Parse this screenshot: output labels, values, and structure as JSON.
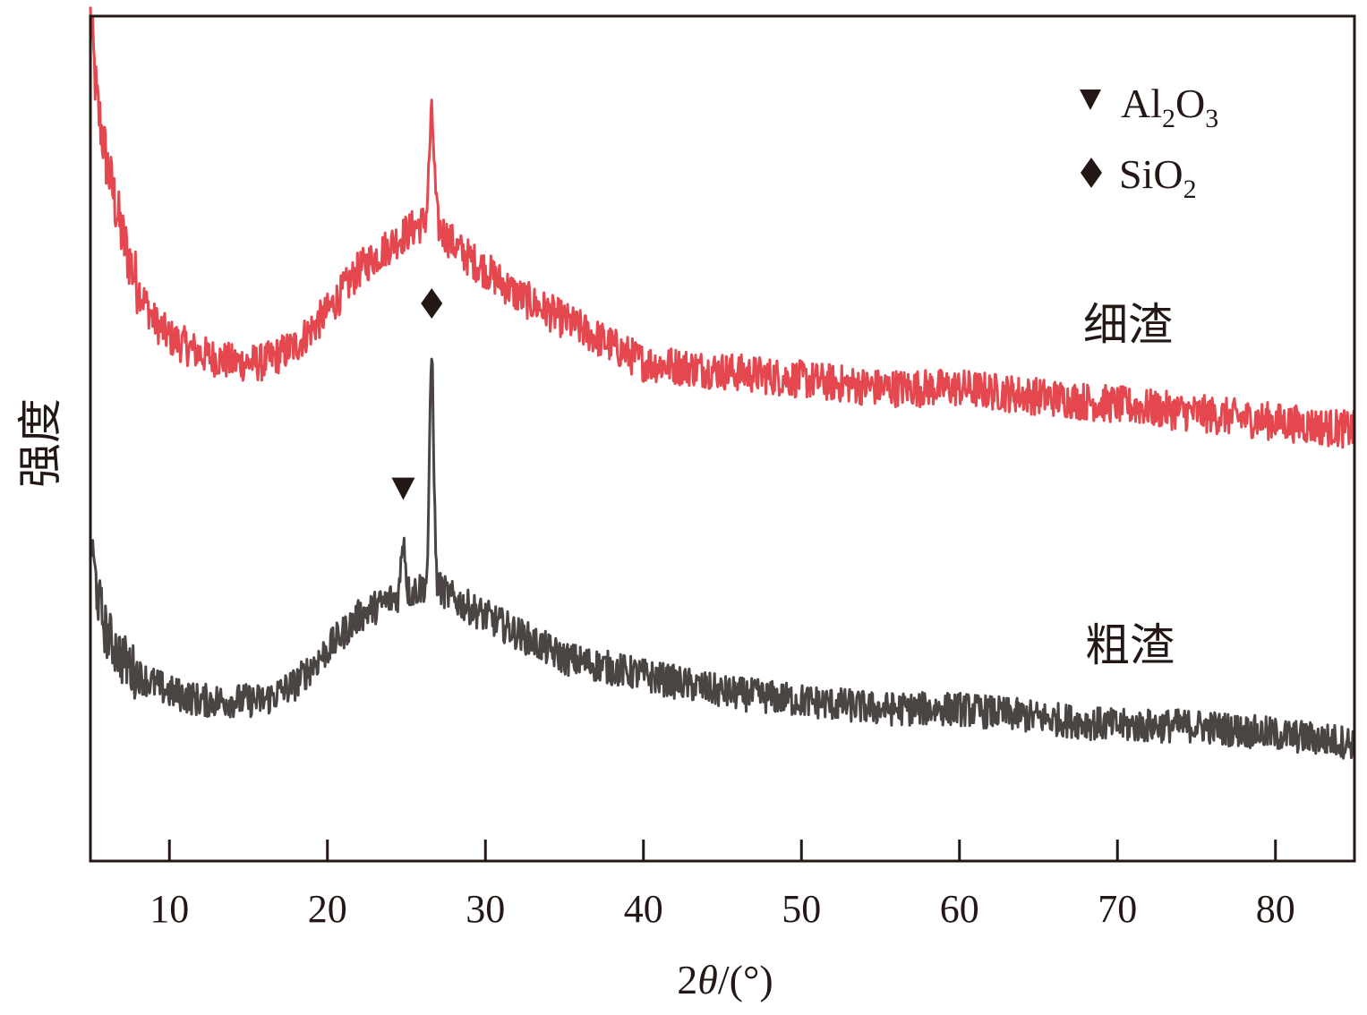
{
  "chart_data": {
    "type": "line",
    "title": "",
    "xlabel_prefix": "2",
    "xlabel_symbol": "θ",
    "xlabel_suffix": "/(°)",
    "ylabel": "强度",
    "xlim": [
      5,
      85
    ],
    "x_ticks": [
      10,
      20,
      30,
      40,
      50,
      60,
      70,
      80
    ],
    "y_ticks": [],
    "grid": false,
    "legend": {
      "placement": "top-right",
      "entries": [
        {
          "symbol": "triangle-down",
          "base": "Al",
          "sub1": "2",
          "mid": "O",
          "sub2": "3"
        },
        {
          "symbol": "diamond",
          "base": "Si",
          "sub1": "",
          "mid": "O",
          "sub2": "2"
        }
      ]
    },
    "series": [
      {
        "name": "细渣",
        "color": "#e5474f",
        "noise": 0.045,
        "points": [
          [
            5,
            1.0
          ],
          [
            5.4,
            0.9
          ],
          [
            6,
            0.83
          ],
          [
            7,
            0.74
          ],
          [
            8,
            0.68
          ],
          [
            9,
            0.64
          ],
          [
            10,
            0.62
          ],
          [
            12,
            0.6
          ],
          [
            14,
            0.59
          ],
          [
            16,
            0.59
          ],
          [
            18,
            0.61
          ],
          [
            20,
            0.65
          ],
          [
            22,
            0.7
          ],
          [
            24,
            0.73
          ],
          [
            25.5,
            0.75
          ],
          [
            26.6,
            0.76
          ],
          [
            27.5,
            0.74
          ],
          [
            28.5,
            0.72
          ],
          [
            30,
            0.7
          ],
          [
            32,
            0.67
          ],
          [
            34,
            0.65
          ],
          [
            36,
            0.63
          ],
          [
            38,
            0.61
          ],
          [
            40,
            0.59
          ],
          [
            45,
            0.58
          ],
          [
            50,
            0.57
          ],
          [
            55,
            0.56
          ],
          [
            60,
            0.56
          ],
          [
            65,
            0.55
          ],
          [
            70,
            0.54
          ],
          [
            75,
            0.53
          ],
          [
            80,
            0.52
          ],
          [
            85,
            0.51
          ]
        ],
        "peaks": [
          {
            "x": 26.6,
            "height": 0.12,
            "width": 0.22
          }
        ]
      },
      {
        "name": "粗渣",
        "color": "#4a4443",
        "noise": 0.04,
        "points": [
          [
            5,
            0.38
          ],
          [
            5.5,
            0.31
          ],
          [
            6,
            0.27
          ],
          [
            7,
            0.24
          ],
          [
            8,
            0.22
          ],
          [
            10,
            0.2
          ],
          [
            12,
            0.19
          ],
          [
            14,
            0.19
          ],
          [
            16,
            0.19
          ],
          [
            18,
            0.21
          ],
          [
            20,
            0.25
          ],
          [
            22,
            0.29
          ],
          [
            24,
            0.31
          ],
          [
            25.5,
            0.32
          ],
          [
            26.6,
            0.33
          ],
          [
            28,
            0.31
          ],
          [
            30,
            0.29
          ],
          [
            32,
            0.27
          ],
          [
            35,
            0.24
          ],
          [
            40,
            0.22
          ],
          [
            45,
            0.2
          ],
          [
            50,
            0.19
          ],
          [
            55,
            0.18
          ],
          [
            60,
            0.18
          ],
          [
            65,
            0.17
          ],
          [
            70,
            0.16
          ],
          [
            75,
            0.16
          ],
          [
            80,
            0.15
          ],
          [
            85,
            0.14
          ]
        ],
        "peaks": [
          {
            "x": 24.8,
            "height": 0.07,
            "width": 0.18
          },
          {
            "x": 26.6,
            "height": 0.27,
            "width": 0.18
          }
        ]
      }
    ],
    "annotations": [
      {
        "symbol": "triangle-down",
        "x": 24.8,
        "y": 0.44,
        "label": "Al2O3"
      },
      {
        "symbol": "diamond",
        "x": 26.6,
        "y": 0.66,
        "label": "SiO2"
      }
    ]
  }
}
